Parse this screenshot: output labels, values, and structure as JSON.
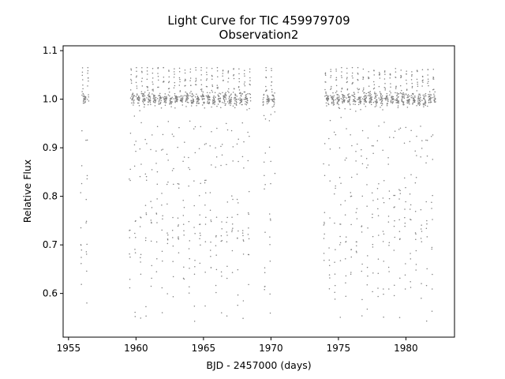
{
  "chart_data": {
    "type": "scatter",
    "title": "Light Curve for TIC 459979709",
    "subtitle": "Observation2",
    "xlabel": "BJD - 2457000 (days)",
    "ylabel": "Relative Flux",
    "xlim": [
      1954.6,
      1983.6
    ],
    "ylim": [
      0.51,
      1.11
    ],
    "xticks": [
      1955,
      1960,
      1965,
      1970,
      1975,
      1980
    ],
    "yticks": [
      0.6,
      0.7,
      0.8,
      0.9,
      1.0,
      1.1
    ],
    "xtick_labels": [
      "1955",
      "1960",
      "1965",
      "1970",
      "1975",
      "1980"
    ],
    "ytick_labels": [
      "0.6",
      "0.7",
      "0.8",
      "0.9",
      "1.0",
      "1.1"
    ],
    "grid": false,
    "marker_color": "#808080",
    "segments": [
      {
        "x_start": 1955.9,
        "x_end": 1956.5
      },
      {
        "x_start": 1959.5,
        "x_end": 1968.5
      },
      {
        "x_start": 1969.4,
        "x_end": 1970.3
      },
      {
        "x_start": 1973.9,
        "x_end": 1982.2
      }
    ],
    "variability": {
      "baseline_flux": 1.0,
      "pulse_max_flux": 1.065,
      "min_flux": 0.54,
      "pulse_period_days": 0.4
    }
  }
}
